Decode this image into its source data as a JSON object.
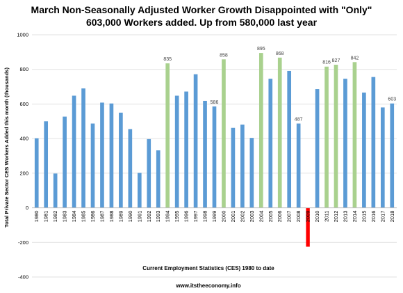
{
  "chart_data": {
    "type": "bar",
    "title_line1": "March Non-Seasonally Adjusted Worker Growth Disappointed with \"Only\"",
    "title_line2": "603,000 Workers added. Up from 580,000 last year",
    "ylabel": "Total Private Sector CES Workers Added this month (thousands)",
    "xlabel": "Current Employment Statistics (CES) 1980 to date",
    "footer": "www.itstheeconomy.info",
    "ylim": [
      -400,
      1000
    ],
    "yticks": [
      -400,
      -200,
      0,
      200,
      400,
      600,
      800,
      1000
    ],
    "grid": true,
    "categories": [
      "1980",
      "1981",
      "1982",
      "1983",
      "1984",
      "1985",
      "1986",
      "1987",
      "1988",
      "1989",
      "1990",
      "1991",
      "1992",
      "1993",
      "1994",
      "1995",
      "1996",
      "1997",
      "1998",
      "1999",
      "2000",
      "2001",
      "2002",
      "2003",
      "2004",
      "2005",
      "2006",
      "2007",
      "2008",
      "2009",
      "2010",
      "2011",
      "2012",
      "2013",
      "2014",
      "2015",
      "2016",
      "2017",
      "2018"
    ],
    "values": [
      402,
      500,
      198,
      527,
      648,
      690,
      487,
      608,
      603,
      550,
      455,
      202,
      397,
      332,
      835,
      648,
      672,
      772,
      618,
      586,
      858,
      462,
      481,
      404,
      895,
      746,
      868,
      791,
      487,
      -225,
      686,
      816,
      827,
      746,
      842,
      666,
      756,
      580,
      603
    ],
    "colors": [
      "blue",
      "blue",
      "blue",
      "blue",
      "blue",
      "blue",
      "blue",
      "blue",
      "blue",
      "blue",
      "blue",
      "blue",
      "blue",
      "blue",
      "green",
      "blue",
      "blue",
      "blue",
      "blue",
      "blue",
      "green",
      "blue",
      "blue",
      "blue",
      "green",
      "blue",
      "green",
      "blue",
      "blue",
      "red",
      "blue",
      "green",
      "green",
      "blue",
      "green",
      "blue",
      "blue",
      "blue",
      "blue"
    ],
    "labels": [
      "",
      "",
      "",
      "",
      "",
      "",
      "",
      "",
      "",
      "",
      "",
      "",
      "",
      "",
      "835",
      "",
      "",
      "",
      "",
      "586",
      "858",
      "",
      "",
      "",
      "895",
      "",
      "868",
      "",
      "487",
      "",
      "",
      "816",
      "827",
      "",
      "842",
      "",
      "",
      "",
      "603"
    ],
    "palette": {
      "blue": "#5b9bd5",
      "green": "#a9d18e",
      "red": "#ff0000"
    }
  }
}
